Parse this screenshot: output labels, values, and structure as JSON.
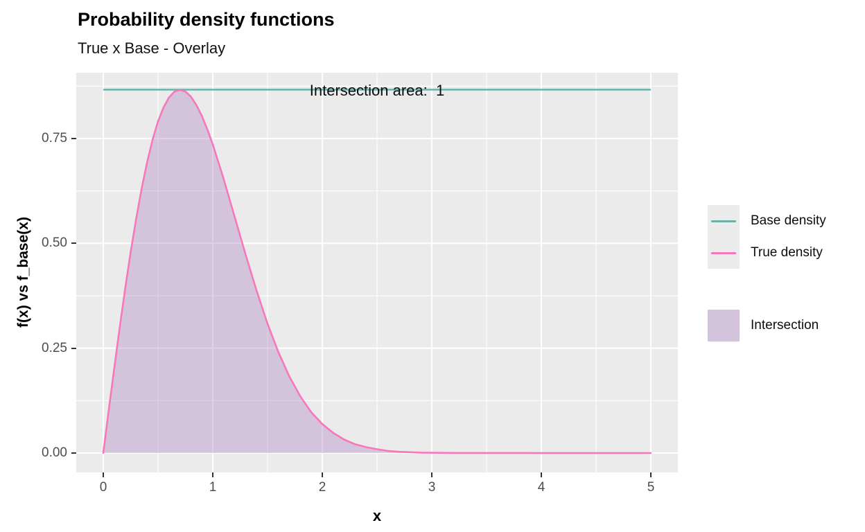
{
  "chart_data": {
    "type": "line",
    "title": "Probability density functions",
    "subtitle": "True x Base - Overlay",
    "xlabel": "x",
    "ylabel": "f(x) vs f_base(x)",
    "annotation": "Intersection area:  1",
    "annotation_position": {
      "x": 2.5,
      "y": 0.8665
    },
    "xlim": [
      -0.247,
      5.247
    ],
    "ylim": [
      -0.0463,
      0.9069
    ],
    "x_ticks": [
      0,
      1,
      2,
      3,
      4,
      5
    ],
    "x_tick_labels": [
      "0",
      "1",
      "2",
      "3",
      "4",
      "5"
    ],
    "x_minor_ticks": [
      0.5,
      1.5,
      2.5,
      3.5,
      4.5
    ],
    "y_ticks": [
      0,
      0.25,
      0.5,
      0.75
    ],
    "y_tick_labels": [
      "0.00",
      "0.25",
      "0.50",
      "0.75"
    ],
    "y_minor_ticks": [
      0.125,
      0.375,
      0.625,
      0.875
    ],
    "grid": true,
    "legend_position": "right",
    "series": [
      {
        "name": "Base density",
        "type": "hline",
        "y": 0.8665,
        "x_start": 0,
        "x_end": 5,
        "color": "#6bb2a8"
      },
      {
        "name": "True density",
        "type": "line",
        "color": "#f778ba",
        "points": [
          [
            0,
            0
          ],
          [
            0.05,
            0.102
          ],
          [
            0.1,
            0.202
          ],
          [
            0.15,
            0.299
          ],
          [
            0.2,
            0.392
          ],
          [
            0.25,
            0.479
          ],
          [
            0.3,
            0.558
          ],
          [
            0.35,
            0.63
          ],
          [
            0.4,
            0.693
          ],
          [
            0.45,
            0.747
          ],
          [
            0.5,
            0.791
          ],
          [
            0.55,
            0.824
          ],
          [
            0.6,
            0.848
          ],
          [
            0.65,
            0.862
          ],
          [
            0.7,
            0.866
          ],
          [
            0.75,
            0.862
          ],
          [
            0.8,
            0.85
          ],
          [
            0.85,
            0.83
          ],
          [
            0.9,
            0.804
          ],
          [
            0.95,
            0.772
          ],
          [
            1.0,
            0.736
          ],
          [
            1.1,
            0.653
          ],
          [
            1.2,
            0.563
          ],
          [
            1.3,
            0.473
          ],
          [
            1.4,
            0.387
          ],
          [
            1.5,
            0.308
          ],
          [
            1.6,
            0.24
          ],
          [
            1.7,
            0.182
          ],
          [
            1.8,
            0.135
          ],
          [
            1.9,
            0.097
          ],
          [
            2.0,
            0.069
          ],
          [
            2.1,
            0.048
          ],
          [
            2.2,
            0.032
          ],
          [
            2.3,
            0.021
          ],
          [
            2.4,
            0.014
          ],
          [
            2.5,
            0.009
          ],
          [
            2.6,
            0.005
          ],
          [
            2.7,
            0.003
          ],
          [
            2.8,
            0.002
          ],
          [
            2.9,
            0.001
          ],
          [
            3.0,
            0.0006
          ],
          [
            3.2,
            0.0002
          ],
          [
            3.5,
            0.0001
          ],
          [
            4.0,
            0
          ],
          [
            4.5,
            0
          ],
          [
            5.0,
            0
          ]
        ]
      },
      {
        "name": "Intersection",
        "type": "area",
        "color": "rgba(166,124,192,0.35)",
        "follows": "True density"
      }
    ],
    "legend": {
      "entries": [
        {
          "label": "Base density",
          "swatch": "line",
          "color": "#6bb2a8"
        },
        {
          "label": "True density",
          "swatch": "line",
          "color": "#f778ba"
        },
        {
          "label": "Intersection",
          "swatch": "fill",
          "color": "rgba(166,124,192,0.35)"
        }
      ]
    },
    "colors": {
      "panel_bg": "#ebebeb",
      "grid": "#ffffff",
      "tick": "#333333",
      "tick_label": "#4d4d4d",
      "legend_key_bg": "#ececec"
    }
  }
}
